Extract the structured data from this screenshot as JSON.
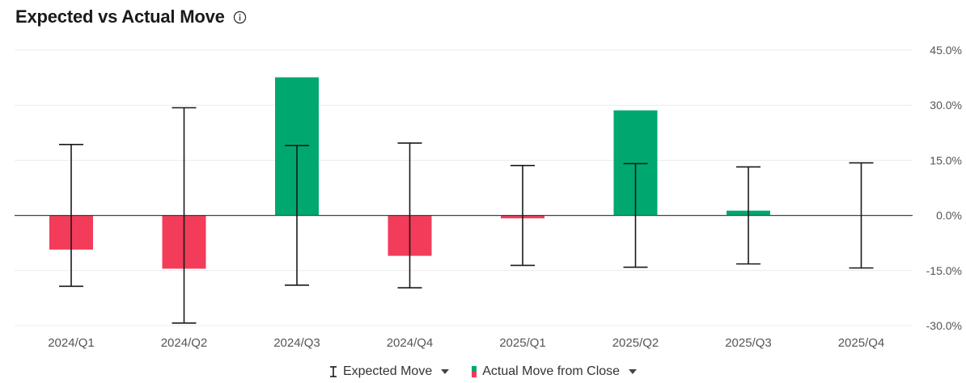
{
  "header": {
    "title": "Expected vs Actual Move"
  },
  "legend": {
    "expected_label": "Expected Move",
    "actual_label": "Actual Move from Close"
  },
  "colors": {
    "positive": "#00a870",
    "negative": "#f23c5a",
    "whisker": "#1a1a1a",
    "zero_line": "#3b4552",
    "grid": "#ececec",
    "tick_text": "#555555"
  },
  "chart_data": {
    "type": "bar",
    "title": "Expected vs Actual Move",
    "categories": [
      "2024/Q1",
      "2024/Q2",
      "2024/Q3",
      "2024/Q4",
      "2025/Q1",
      "2025/Q2",
      "2025/Q3",
      "2025/Q4"
    ],
    "ylim": [
      -30,
      45
    ],
    "yticks": [
      45,
      30,
      15,
      0,
      -15,
      -30
    ],
    "ytick_labels": [
      "45.0%",
      "30.0%",
      "15.0%",
      "0.0%",
      "-15.0%",
      "-30.0%"
    ],
    "y_axis_side": "right",
    "grid": true,
    "legend_position": "bottom-center",
    "series": [
      {
        "name": "Actual Move from Close",
        "type": "bar",
        "values": [
          -9.3,
          -14.5,
          37.6,
          -11.0,
          -0.8,
          28.6,
          1.3,
          null
        ]
      },
      {
        "name": "Expected Move",
        "type": "errorbar",
        "values": [
          19.3,
          29.3,
          19.0,
          19.7,
          13.6,
          14.1,
          13.2,
          14.3
        ]
      }
    ]
  }
}
